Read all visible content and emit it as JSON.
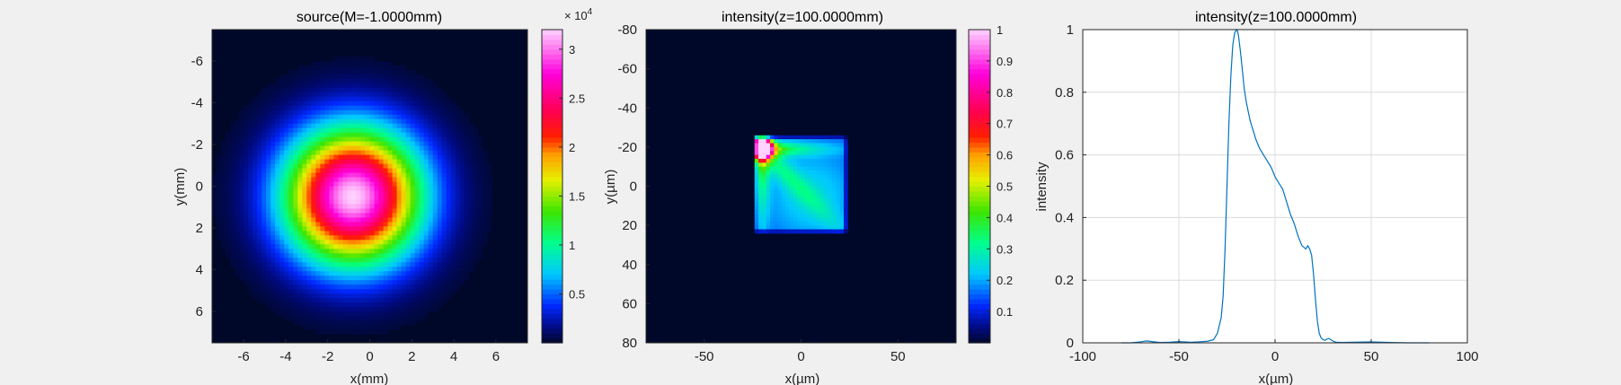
{
  "chart_data": [
    {
      "type": "heatmap",
      "title": "source(M=-1.0000mm)",
      "xlabel": "x(mm)",
      "ylabel": "y(mm)",
      "xlim": [
        -7.5,
        7.5
      ],
      "ylim": [
        -7.5,
        7.5
      ],
      "y_reversed": true,
      "xticks": [
        -6,
        -4,
        -2,
        0,
        2,
        4,
        6
      ],
      "yticks": [
        -6,
        -4,
        -2,
        0,
        2,
        4,
        6
      ],
      "xtick_labels": [
        "-6",
        "-4",
        "-2",
        "0",
        "2",
        "4",
        "6"
      ],
      "ytick_labels": [
        "-6",
        "-4",
        "-2",
        "0",
        "2",
        "4",
        "6"
      ],
      "colormap": "hsv-like (navy, blue, cyan, green, yellow, orange, red, magenta, pale pink)",
      "colorbar": {
        "range": [
          0,
          32000
        ],
        "ticks": [
          5000,
          10000,
          15000,
          20000,
          25000,
          30000
        ],
        "tick_labels": [
          "0.5",
          "1",
          "1.5",
          "2",
          "2.5",
          "3"
        ],
        "exponent_base": "× 10",
        "exponent_power": "4"
      },
      "distribution": {
        "shape": "gaussian spot",
        "center_x_mm": -0.8,
        "center_y_mm": 0.5,
        "peak": 32000
      }
    },
    {
      "type": "heatmap",
      "title": "intensity(z=100.0000mm)",
      "xlabel": "x(µm)",
      "ylabel": "y(µm)",
      "xlim": [
        -80,
        80
      ],
      "ylim": [
        -80,
        80
      ],
      "y_reversed": true,
      "xticks": [
        -50,
        0,
        50
      ],
      "yticks": [
        -80,
        -60,
        -40,
        -20,
        0,
        20,
        40,
        60,
        80
      ],
      "xtick_labels": [
        "-50",
        "0",
        "50"
      ],
      "ytick_labels": [
        "-80",
        "-60",
        "-40",
        "-20",
        "0",
        "20",
        "40",
        "60",
        "80"
      ],
      "colorbar": {
        "range": [
          0,
          1
        ],
        "ticks": [
          0.1,
          0.2,
          0.3,
          0.4,
          0.5,
          0.6,
          0.7,
          0.8,
          0.9,
          1
        ],
        "tick_labels": [
          "0.1",
          "0.2",
          "0.3",
          "0.4",
          "0.5",
          "0.6",
          "0.7",
          "0.8",
          "0.9",
          "1"
        ]
      },
      "distribution": {
        "shape": "square patch with bright corner",
        "x_range_um": [
          -25,
          24
        ],
        "y_range_um": [
          -26,
          24
        ],
        "peak_x_um": -20,
        "peak_y_um": -19,
        "peak": 1
      }
    },
    {
      "type": "line",
      "title": "intensity(z=100.0000mm)",
      "xlabel": "x(µm)",
      "ylabel": "intensity",
      "xlim": [
        -100,
        100
      ],
      "ylim": [
        0,
        1
      ],
      "grid": true,
      "xticks": [
        -100,
        -50,
        0,
        50,
        100
      ],
      "yticks": [
        0,
        0.2,
        0.4,
        0.6,
        0.8,
        1
      ],
      "xtick_labels": [
        "-100",
        "-50",
        "0",
        "50",
        "100"
      ],
      "ytick_labels": [
        "0",
        "0.2",
        "0.4",
        "0.6",
        "0.8",
        "1"
      ],
      "series": [
        {
          "color": "#0072bd",
          "x": [
            -80,
            -75,
            -70,
            -67,
            -64,
            -60,
            -55,
            -50,
            -47,
            -44,
            -40,
            -35,
            -32,
            -30,
            -28,
            -27,
            -26,
            -25,
            -24,
            -23,
            -22,
            -21,
            -20,
            -19.5,
            -19,
            -18,
            -17,
            -16,
            -15,
            -14,
            -13,
            -12,
            -11,
            -10,
            -8,
            -6,
            -4,
            -2,
            0,
            2,
            4,
            6,
            8,
            10,
            12,
            14,
            16,
            17,
            18,
            19,
            20,
            21,
            22,
            23,
            24,
            25,
            26,
            27,
            28,
            29,
            30,
            31,
            32,
            35,
            40,
            50,
            60,
            70,
            80
          ],
          "y": [
            0,
            0,
            0.003,
            0.006,
            0.004,
            0.001,
            0.002,
            0.004,
            0.003,
            0.002,
            0.003,
            0.005,
            0.01,
            0.03,
            0.08,
            0.15,
            0.3,
            0.5,
            0.7,
            0.85,
            0.95,
            0.99,
            1,
            0.995,
            0.98,
            0.93,
            0.87,
            0.81,
            0.77,
            0.74,
            0.71,
            0.69,
            0.67,
            0.65,
            0.62,
            0.6,
            0.58,
            0.56,
            0.53,
            0.51,
            0.49,
            0.45,
            0.41,
            0.38,
            0.34,
            0.31,
            0.3,
            0.31,
            0.3,
            0.28,
            0.22,
            0.14,
            0.07,
            0.03,
            0.015,
            0.01,
            0.008,
            0.012,
            0.014,
            0.01,
            0.006,
            0.003,
            0.002,
            0.001,
            0.002,
            0.003,
            0.001,
            0,
            0
          ]
        }
      ]
    }
  ]
}
